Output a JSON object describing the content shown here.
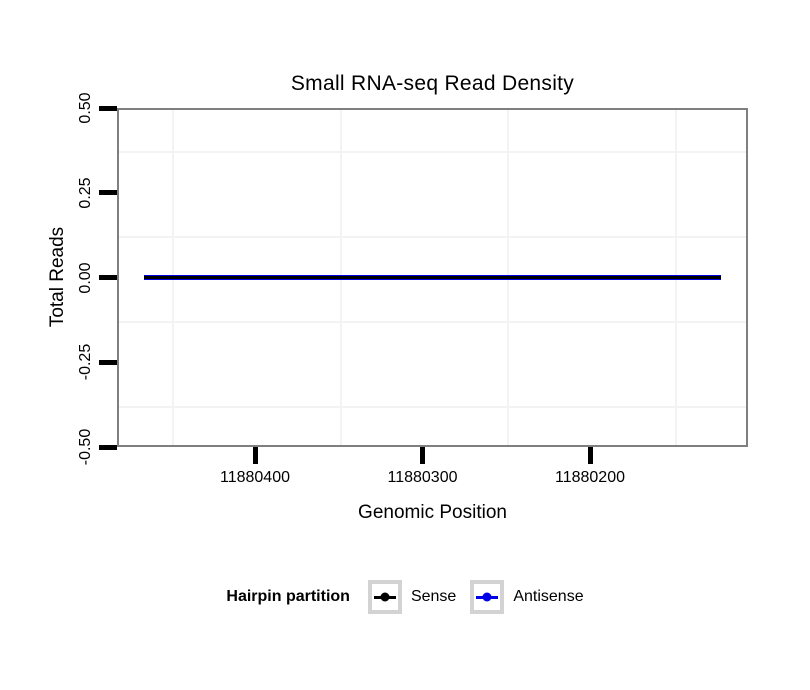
{
  "chart": {
    "title": "Small RNA-seq Read Density",
    "x_axis_title": "Genomic Position",
    "y_axis_title": "Total Reads"
  },
  "chart_data": {
    "type": "line",
    "title": "Small RNA-seq Read Density",
    "xlabel": "Genomic Position",
    "ylabel": "Total Reads",
    "x_axis": {
      "ticks": [
        11880400,
        11880300,
        11880200
      ],
      "tick_labels": [
        "11880400",
        "11880300",
        "11880200"
      ],
      "reversed": true,
      "range_displayed": [
        11880482,
        11880106
      ],
      "grid": "minor-only"
    },
    "y_axis": {
      "ticks": [
        0.5,
        0.25,
        0.0,
        -0.25,
        -0.5
      ],
      "tick_labels": [
        "0.50",
        "0.25",
        "0.00",
        "-0.25",
        "-0.50"
      ],
      "range": [
        -0.5,
        0.5
      ],
      "grid": "minor-only"
    },
    "series": [
      {
        "name": "Sense",
        "color": "#000000",
        "y": 0,
        "x_start": 11880466,
        "x_end": 11880122
      },
      {
        "name": "Antisense",
        "color": "#0000e6",
        "y": 0,
        "x_start": 11880466,
        "x_end": 11880122
      }
    ],
    "legend": {
      "title": "Hairpin partition",
      "position": "bottom",
      "entries": [
        {
          "label": "Sense",
          "color": "#000000"
        },
        {
          "label": "Antisense",
          "color": "#0000e6"
        }
      ]
    },
    "panel_border_color": "#7f7f7f",
    "minor_grid_color": "#f3f3f3",
    "background_color": "#ffffff"
  }
}
